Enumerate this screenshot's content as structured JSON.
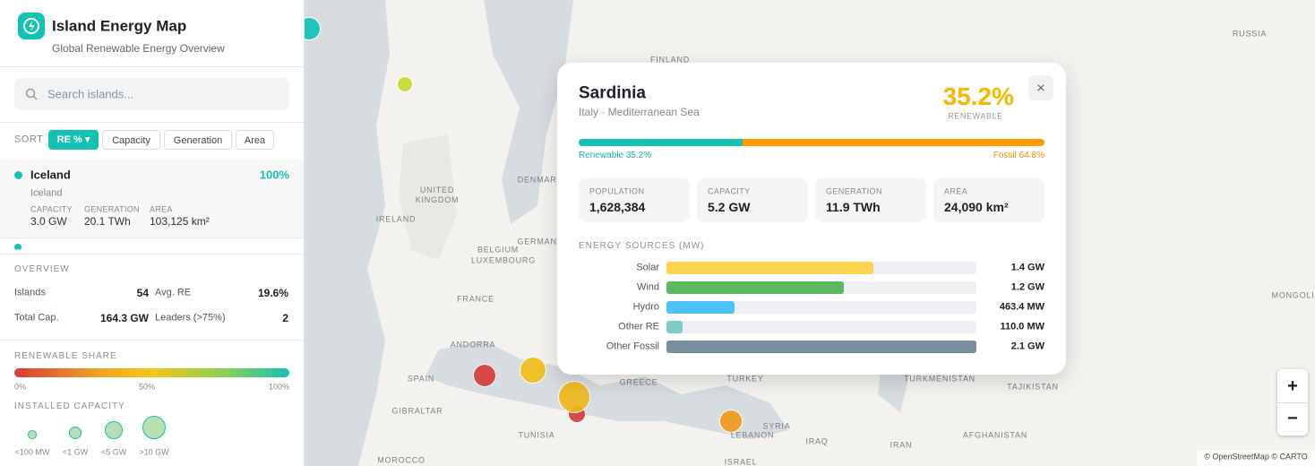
{
  "header": {
    "title": "Island Energy Map",
    "subtitle": "Global Renewable Energy Overview"
  },
  "search": {
    "placeholder": "Search islands..."
  },
  "sort": {
    "label": "SORT",
    "options": [
      "RE % ▾",
      "Capacity",
      "Generation",
      "Area"
    ]
  },
  "list": {
    "items": [
      {
        "name": "Iceland",
        "share": "100%",
        "country": "Iceland",
        "stats": [
          {
            "label": "CAPACITY",
            "value": "3.0 GW"
          },
          {
            "label": "GENERATION",
            "value": "20.1 TWh"
          },
          {
            "label": "AREA",
            "value": "103,125 km²"
          }
        ]
      }
    ]
  },
  "overview": {
    "title": "OVERVIEW",
    "rows": [
      [
        {
          "label": "Islands",
          "value": "54"
        },
        {
          "label": "Avg. RE",
          "value": "19.6%"
        }
      ],
      [
        {
          "label": "Total Cap.",
          "value": "164.3 GW"
        },
        {
          "label": "Leaders (>75%)",
          "value": "2"
        }
      ]
    ]
  },
  "legend": {
    "share_title": "RENEWABLE SHARE",
    "share_ticks": [
      "0%",
      "50%",
      "100%"
    ],
    "capacity_title": "INSTALLED CAPACITY",
    "capacity_sizes": [
      "<100 MW",
      "<1 GW",
      "<5 GW",
      ">10 GW"
    ]
  },
  "map": {
    "labels": [
      "RUSSIA",
      "FINLAND",
      "UNITED KINGDOM",
      "IRELAND",
      "DENMARK",
      "BELGIUM",
      "LUXEMBOURG",
      "GERMANY",
      "FRANCE",
      "ANDORRA",
      "SPAIN",
      "GIBRALTAR",
      "TUNISIA",
      "MOROCCO",
      "GREECE",
      "TURKEY",
      "TURKMENISTAN",
      "TAJIKISTAN",
      "MONGOLIA",
      "SYRIA",
      "LEBANON",
      "IRAQ",
      "IRAN",
      "AFGHANISTAN",
      "ISRAEL"
    ],
    "zoom_in": "+",
    "zoom_out": "−",
    "attribution": "© OpenStreetMap © CARTO"
  },
  "popup": {
    "name": "Sardinia",
    "subtitle": "Italy · Mediterranean Sea",
    "share": "35.2%",
    "share_label": "RENEWABLE",
    "close": "×",
    "split": {
      "renewable": {
        "value": 35.2,
        "label": "Renewable 35.2%"
      },
      "fossil": {
        "value": 64.8,
        "label": "Fossil 64.8%"
      }
    },
    "stats": [
      {
        "label": "POPULATION",
        "value": "1,628,384"
      },
      {
        "label": "CAPACITY",
        "value": "5.2 GW"
      },
      {
        "label": "GENERATION",
        "value": "11.9 TWh"
      },
      {
        "label": "AREA",
        "value": "24,090 km²"
      }
    ],
    "sources_title": "ENERGY SOURCES (MW)",
    "sources": [
      {
        "name": "Solar",
        "value": 1400,
        "label": "1.4 GW",
        "color": "#fdd44f"
      },
      {
        "name": "Wind",
        "value": 1200,
        "label": "1.2 GW",
        "color": "#5cb85f"
      },
      {
        "name": "Hydro",
        "value": 463.4,
        "label": "463.4 MW",
        "color": "#4fc3f7"
      },
      {
        "name": "Other RE",
        "value": 110.0,
        "label": "110.0 MW",
        "color": "#80cbc4"
      },
      {
        "name": "Other Fossil",
        "value": 2100,
        "label": "2.1 GW",
        "color": "#78909c"
      }
    ]
  }
}
